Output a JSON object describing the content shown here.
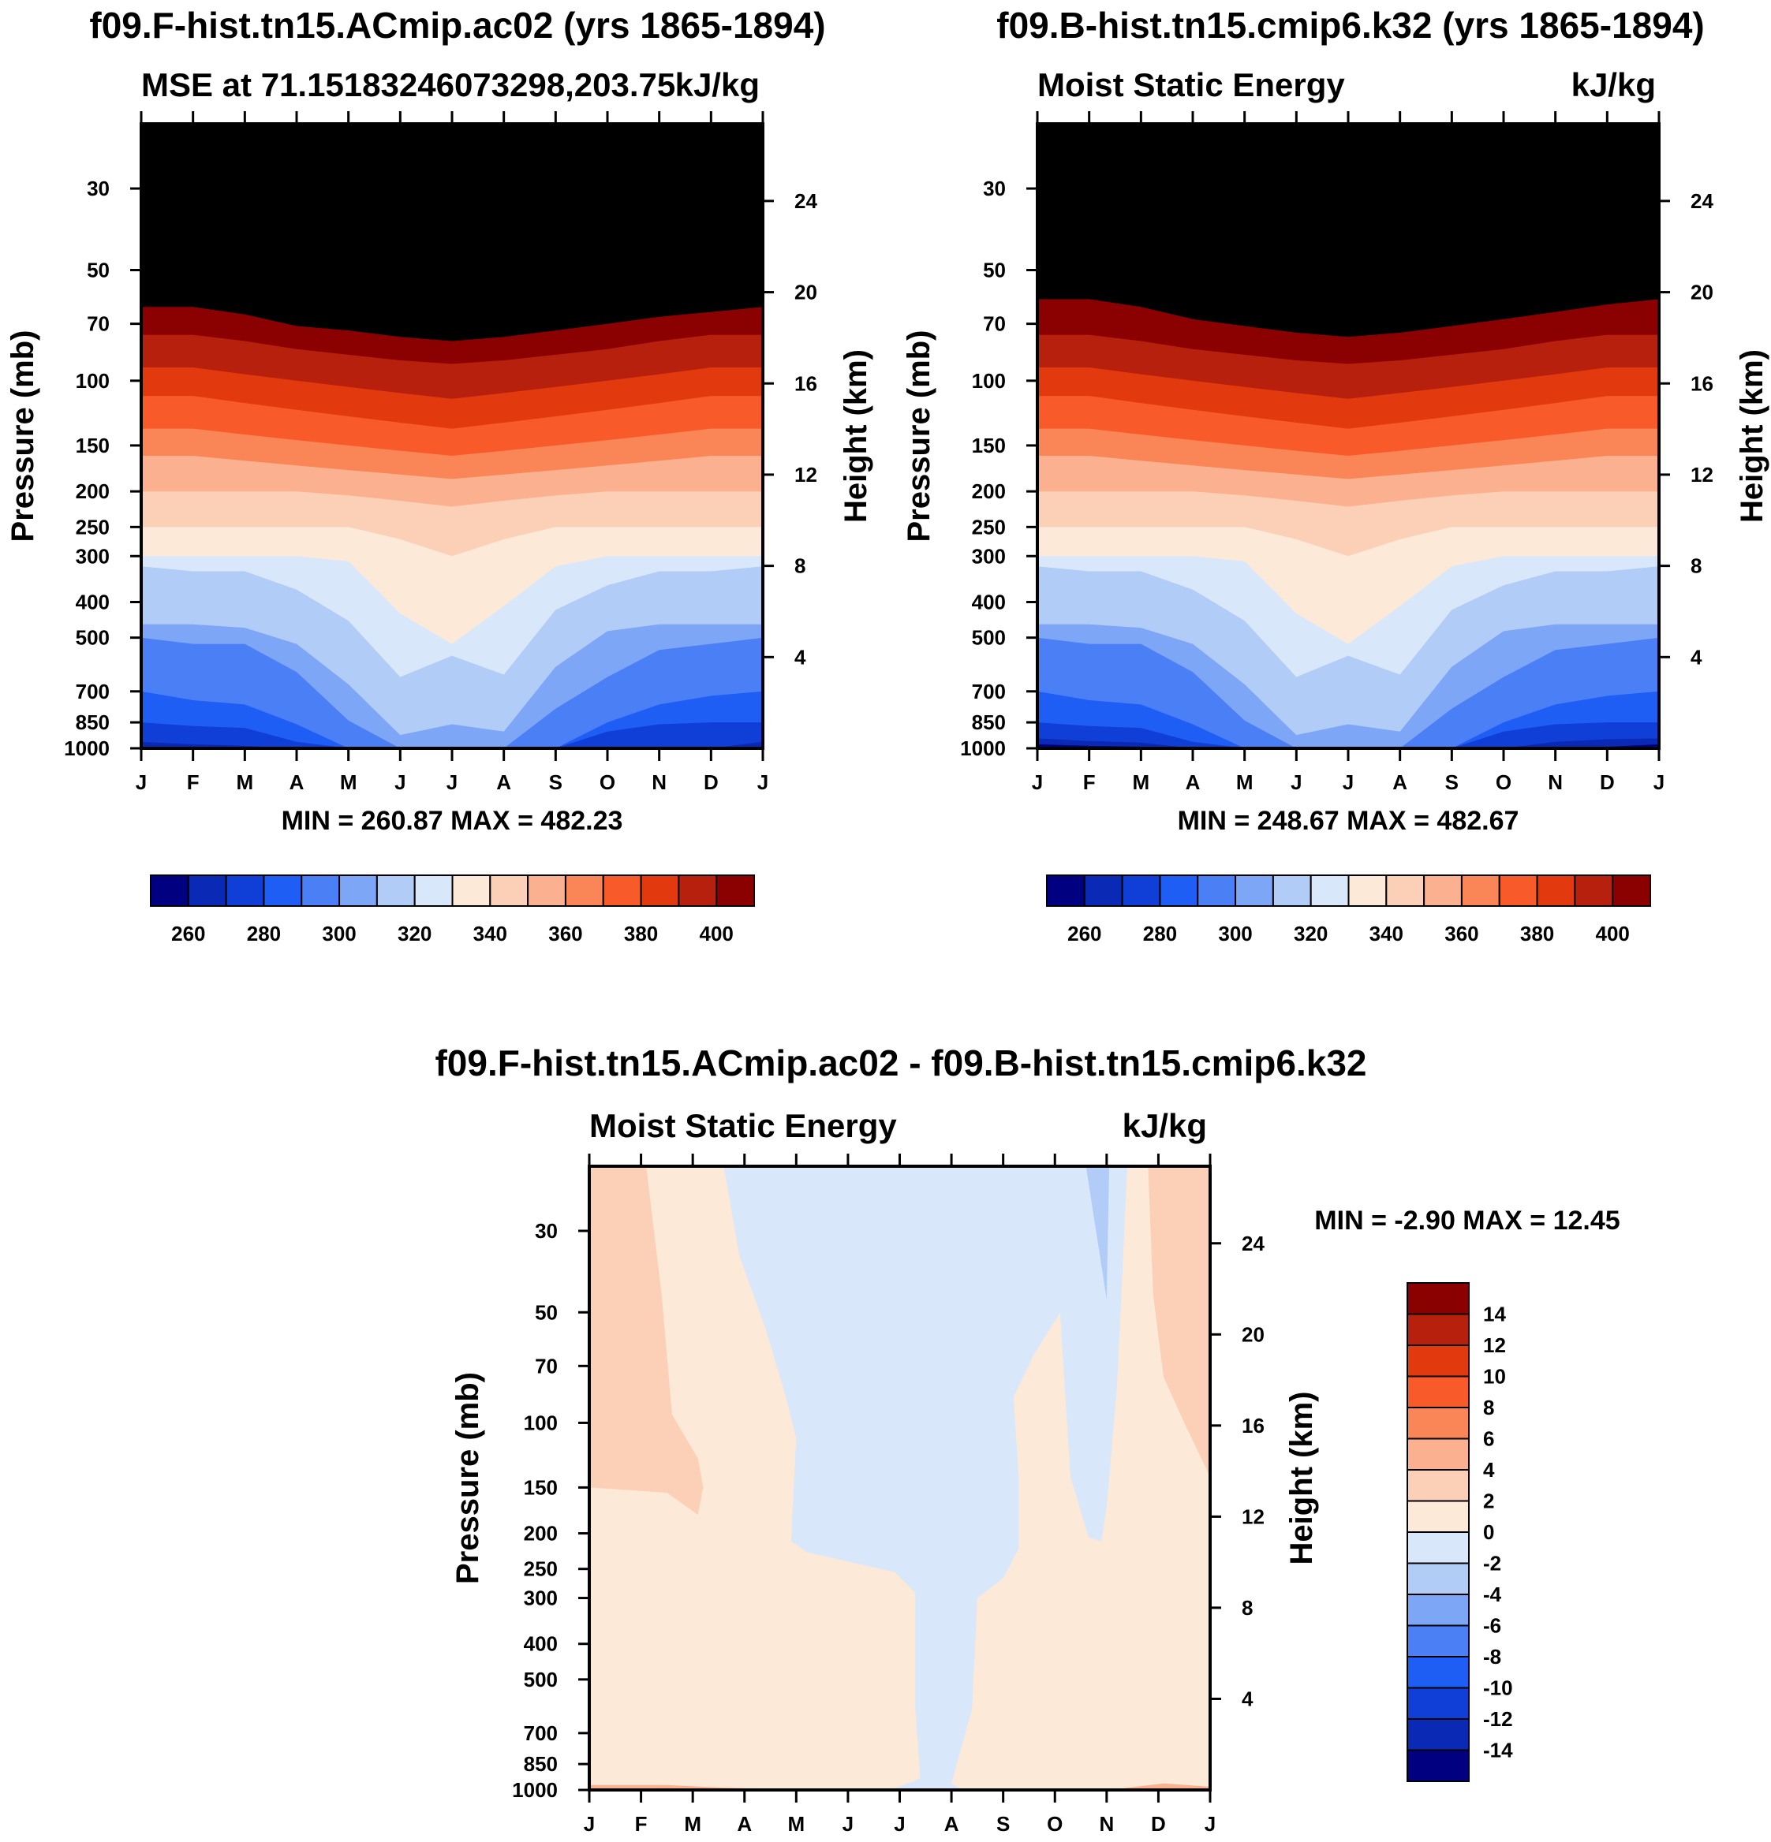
{
  "colors": {
    "abs_levels": [
      "#000080",
      "#0a2ab5",
      "#0f3fd6",
      "#1f5ef5",
      "#4a7ff5",
      "#7ea6f7",
      "#b2ccf8",
      "#d8e8fa",
      "#fde9d7",
      "#fcd0b6",
      "#fbb090",
      "#fa8556",
      "#f85a2a",
      "#e23a0e",
      "#b8200e",
      "#8b0000"
    ],
    "diff_levels": [
      "#000080",
      "#0a2ab5",
      "#0f3fd6",
      "#1f5ef5",
      "#4a7ff5",
      "#7ea6f7",
      "#b2ccf8",
      "#d8e8fa",
      "#fde9d7",
      "#fcd0b6",
      "#fbb090",
      "#fa8556",
      "#f85a2a",
      "#e23a0e",
      "#b8200e",
      "#8b0000"
    ]
  },
  "chart_data": [
    {
      "type": "heatmap",
      "title": "f09.F-hist.tn15.ACmip.ac02 (yrs 1865-1894)",
      "left_label": "MSE at 71.15183246073298,203.75",
      "right_label": "kJ/kg",
      "ylabel": "Pressure (mb)",
      "y2label": "Height (km)",
      "months": [
        "J",
        "F",
        "M",
        "A",
        "M",
        "J",
        "J",
        "A",
        "S",
        "O",
        "N",
        "D",
        "J"
      ],
      "pressure_ticks": [
        "30",
        "50",
        "70",
        "100",
        "150",
        "200",
        "250",
        "300",
        "400",
        "500",
        "700",
        "850",
        "1000"
      ],
      "height_ticks": [
        "24",
        "20",
        "16",
        "12",
        "8",
        "4"
      ],
      "stats": "MIN = 260.87 MAX = 482.23",
      "level_boundaries": [
        260,
        270,
        280,
        290,
        300,
        310,
        320,
        330,
        340,
        350,
        360,
        370,
        380,
        390,
        400
      ],
      "colorbar_labels": [
        "260",
        "280",
        "300",
        "320",
        "340",
        "360",
        "380",
        "400"
      ],
      "boundary_pressure_by_month": [
        [
          1000,
          1000,
          1000,
          1000,
          1000,
          1000,
          1000,
          1000,
          1000,
          1000,
          1000,
          1000,
          1000
        ],
        [
          960,
          975,
          985,
          1000,
          1000,
          1000,
          1000,
          1000,
          1000,
          1000,
          1000,
          1000,
          960
        ],
        [
          850,
          870,
          880,
          960,
          1000,
          1000,
          1000,
          1000,
          1000,
          900,
          860,
          850,
          850
        ],
        [
          700,
          740,
          760,
          860,
          1000,
          1000,
          1000,
          1000,
          1000,
          850,
          760,
          720,
          700
        ],
        [
          500,
          520,
          520,
          620,
          840,
          1000,
          1000,
          1000,
          780,
          640,
          540,
          520,
          500
        ],
        [
          460,
          460,
          470,
          520,
          670,
          920,
          860,
          900,
          600,
          480,
          460,
          460,
          460
        ],
        [
          320,
          330,
          330,
          370,
          450,
          640,
          560,
          630,
          420,
          360,
          330,
          330,
          320
        ],
        [
          300,
          300,
          300,
          300,
          310,
          430,
          520,
          410,
          320,
          300,
          300,
          300,
          300
        ],
        [
          250,
          250,
          250,
          250,
          250,
          270,
          300,
          270,
          250,
          250,
          250,
          250,
          250
        ],
        [
          200,
          200,
          200,
          200,
          205,
          212,
          220,
          212,
          205,
          200,
          200,
          200,
          200
        ],
        [
          160,
          160,
          165,
          170,
          175,
          180,
          185,
          180,
          175,
          170,
          165,
          160,
          160
        ],
        [
          135,
          135,
          140,
          145,
          150,
          155,
          160,
          155,
          150,
          145,
          140,
          135,
          135
        ],
        [
          110,
          110,
          115,
          120,
          125,
          130,
          135,
          130,
          125,
          120,
          115,
          110,
          110
        ],
        [
          92,
          92,
          96,
          100,
          104,
          108,
          112,
          108,
          104,
          100,
          96,
          92,
          92
        ],
        [
          75,
          75,
          78,
          82,
          85,
          88,
          90,
          88,
          85,
          82,
          78,
          75,
          75
        ],
        [
          63,
          63,
          66,
          71,
          73,
          76,
          78,
          76,
          73,
          70,
          67,
          65,
          63
        ]
      ]
    },
    {
      "type": "heatmap",
      "title": "f09.B-hist.tn15.cmip6.k32 (yrs 1865-1894)",
      "left_label": "Moist Static Energy",
      "right_label": "kJ/kg",
      "ylabel": "Pressure (mb)",
      "y2label": "Height (km)",
      "months": [
        "J",
        "F",
        "M",
        "A",
        "M",
        "J",
        "J",
        "A",
        "S",
        "O",
        "N",
        "D",
        "J"
      ],
      "pressure_ticks": [
        "30",
        "50",
        "70",
        "100",
        "150",
        "200",
        "250",
        "300",
        "400",
        "500",
        "700",
        "850",
        "1000"
      ],
      "height_ticks": [
        "24",
        "20",
        "16",
        "12",
        "8",
        "4"
      ],
      "stats": "MIN = 248.67 MAX = 482.67",
      "level_boundaries": [
        260,
        270,
        280,
        290,
        300,
        310,
        320,
        330,
        340,
        350,
        360,
        370,
        380,
        390,
        400
      ],
      "colorbar_labels": [
        "260",
        "280",
        "300",
        "320",
        "340",
        "360",
        "380",
        "400"
      ],
      "boundary_pressure_by_month": [
        [
          975,
          985,
          990,
          1000,
          1000,
          1000,
          1000,
          1000,
          1000,
          1000,
          1000,
          990,
          975
        ],
        [
          940,
          955,
          965,
          1000,
          1000,
          1000,
          1000,
          1000,
          1000,
          1000,
          960,
          945,
          940
        ],
        [
          850,
          870,
          880,
          960,
          1000,
          1000,
          1000,
          1000,
          1000,
          900,
          860,
          850,
          850
        ],
        [
          700,
          740,
          760,
          860,
          1000,
          1000,
          1000,
          1000,
          1000,
          850,
          760,
          720,
          700
        ],
        [
          500,
          520,
          520,
          620,
          840,
          1000,
          1000,
          1000,
          780,
          640,
          540,
          520,
          500
        ],
        [
          460,
          460,
          470,
          520,
          670,
          920,
          860,
          900,
          600,
          480,
          460,
          460,
          460
        ],
        [
          320,
          330,
          330,
          370,
          450,
          640,
          560,
          630,
          420,
          360,
          330,
          330,
          320
        ],
        [
          300,
          300,
          300,
          300,
          310,
          430,
          520,
          410,
          320,
          300,
          300,
          300,
          300
        ],
        [
          250,
          250,
          250,
          250,
          250,
          270,
          300,
          270,
          250,
          250,
          250,
          250,
          250
        ],
        [
          200,
          200,
          200,
          200,
          205,
          212,
          220,
          212,
          205,
          200,
          200,
          200,
          200
        ],
        [
          160,
          160,
          165,
          170,
          175,
          180,
          185,
          180,
          175,
          170,
          165,
          160,
          160
        ],
        [
          135,
          135,
          140,
          145,
          150,
          155,
          160,
          155,
          150,
          145,
          140,
          135,
          135
        ],
        [
          110,
          110,
          115,
          120,
          125,
          130,
          135,
          130,
          125,
          120,
          115,
          110,
          110
        ],
        [
          92,
          92,
          96,
          100,
          104,
          108,
          112,
          108,
          104,
          100,
          96,
          92,
          92
        ],
        [
          75,
          75,
          78,
          82,
          85,
          88,
          90,
          88,
          85,
          82,
          78,
          75,
          75
        ],
        [
          60,
          60,
          63,
          68,
          71,
          74,
          76,
          74,
          71,
          68,
          65,
          62,
          60
        ]
      ]
    },
    {
      "type": "heatmap",
      "title": "f09.F-hist.tn15.ACmip.ac02 - f09.B-hist.tn15.cmip6.k32",
      "left_label": "Moist Static Energy",
      "right_label": "kJ/kg",
      "ylabel": "Pressure (mb)",
      "y2label": "Height (km)",
      "months": [
        "J",
        "F",
        "M",
        "A",
        "M",
        "J",
        "J",
        "A",
        "S",
        "O",
        "N",
        "D",
        "J"
      ],
      "pressure_ticks": [
        "30",
        "50",
        "70",
        "100",
        "150",
        "200",
        "250",
        "300",
        "400",
        "500",
        "700",
        "850",
        "1000"
      ],
      "height_ticks": [
        "24",
        "20",
        "16",
        "12",
        "8",
        "4"
      ],
      "stats": "MIN =  -2.90 MAX =  12.45",
      "level_boundaries": [
        -14,
        -12,
        -10,
        -8,
        -6,
        -4,
        -2,
        0,
        2,
        4,
        6,
        8,
        10,
        12,
        14
      ],
      "colorbar_labels": [
        "14",
        "12",
        "10",
        "8",
        "6",
        "4",
        "2",
        "0",
        "-2",
        "-4",
        "-6",
        "-8",
        "-10",
        "-12",
        "-14"
      ],
      "regions": [
        {
          "level": "0 to 2",
          "months": [
            0,
            12
          ],
          "pressure": [
            20,
            1000
          ]
        },
        {
          "level": "2 to 4",
          "months": [
            0,
            2.1
          ],
          "pressure": [
            20,
            155
          ],
          "note": "upper-left patch"
        },
        {
          "level": "2 to 4",
          "months": [
            10.8,
            12
          ],
          "pressure": [
            20,
            140
          ],
          "note": "upper-right patch"
        },
        {
          "level": "-2 to 0",
          "months": [
            2.6,
            10.4
          ],
          "pressure": [
            20,
            1000
          ],
          "note": "central negative column"
        },
        {
          "level": "-4 to -2",
          "months": [
            9.6,
            10.0
          ],
          "pressure": [
            20,
            45
          ],
          "note": "small top tongue"
        },
        {
          "level": "4 to 6",
          "months": [
            0,
            12
          ],
          "pressure": [
            980,
            1000
          ],
          "note": "thin near-surface band"
        }
      ]
    }
  ]
}
